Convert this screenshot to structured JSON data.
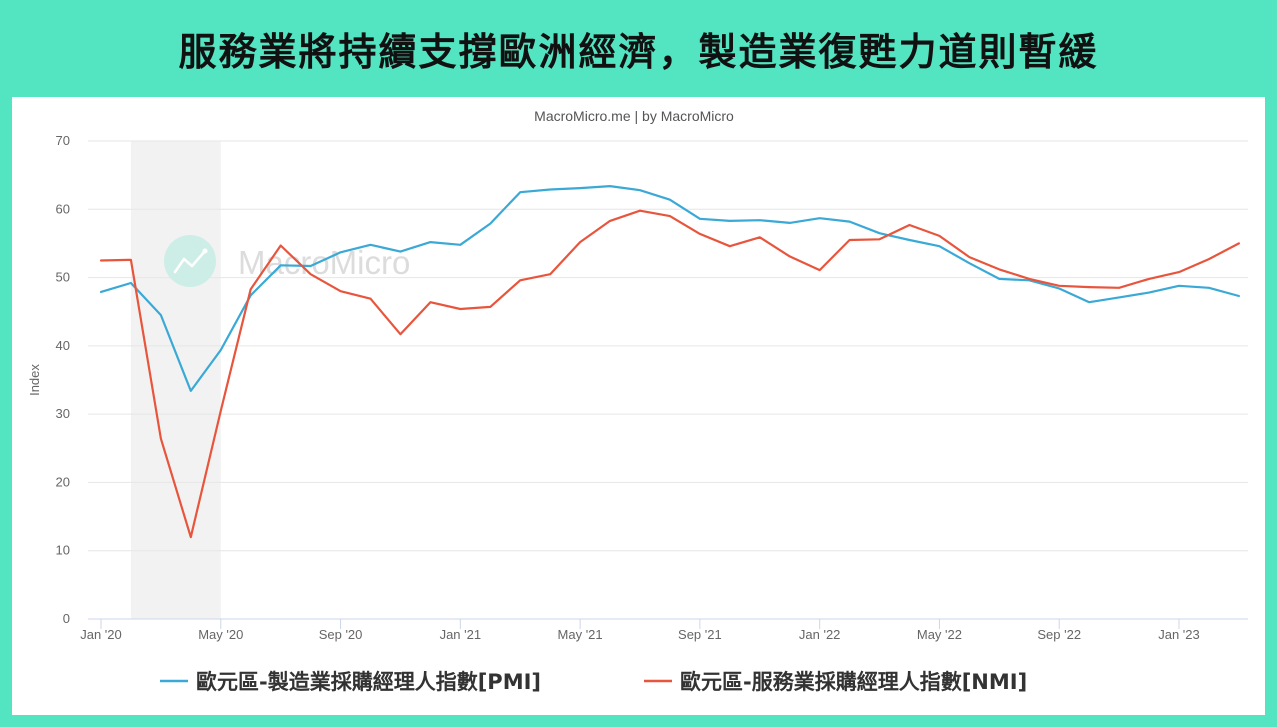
{
  "title": "服務業將持續支撐歐洲經濟，製造業復甦力道則暫緩",
  "colors": {
    "background": "#53e4c2",
    "panel": "#ffffff",
    "shade": "#f2f2f2",
    "grid": "#e6e6e6",
    "axis": "#ccd6eb"
  },
  "chart_data": {
    "type": "line",
    "subtitle": "MacroMicro.me | by MacroMicro",
    "watermark": "MacroMicro",
    "xlabel": "",
    "ylabel": "Index",
    "ylim": [
      0,
      70
    ],
    "y_ticks": [
      0,
      10,
      20,
      30,
      40,
      50,
      60,
      70
    ],
    "x_ticks": [
      {
        "date": "2020-01",
        "label": "Jan '20"
      },
      {
        "date": "2020-05",
        "label": "May '20"
      },
      {
        "date": "2020-09",
        "label": "Sep '20"
      },
      {
        "date": "2021-01",
        "label": "Jan '21"
      },
      {
        "date": "2021-05",
        "label": "May '21"
      },
      {
        "date": "2021-09",
        "label": "Sep '21"
      },
      {
        "date": "2022-01",
        "label": "Jan '22"
      },
      {
        "date": "2022-05",
        "label": "May '22"
      },
      {
        "date": "2022-09",
        "label": "Sep '22"
      },
      {
        "date": "2023-01",
        "label": "Jan '23"
      }
    ],
    "grid": true,
    "legend_position": "bottom",
    "shaded_period": {
      "from": "2020-02",
      "to": "2020-05"
    },
    "x": [
      "2020-01",
      "2020-02",
      "2020-03",
      "2020-04",
      "2020-05",
      "2020-06",
      "2020-07",
      "2020-08",
      "2020-09",
      "2020-10",
      "2020-11",
      "2020-12",
      "2021-01",
      "2021-02",
      "2021-03",
      "2021-04",
      "2021-05",
      "2021-06",
      "2021-07",
      "2021-08",
      "2021-09",
      "2021-10",
      "2021-11",
      "2021-12",
      "2022-01",
      "2022-02",
      "2022-03",
      "2022-04",
      "2022-05",
      "2022-06",
      "2022-07",
      "2022-08",
      "2022-09",
      "2022-10",
      "2022-11",
      "2022-12",
      "2023-01",
      "2023-02",
      "2023-03"
    ],
    "series": [
      {
        "name": "歐元區-製造業採購經理人指數[PMI]",
        "color": "#3aa9d6",
        "values": [
          47.9,
          49.2,
          44.5,
          33.4,
          39.4,
          47.4,
          51.8,
          51.7,
          53.7,
          54.8,
          53.8,
          55.2,
          54.8,
          57.9,
          62.5,
          62.9,
          63.1,
          63.4,
          62.8,
          61.4,
          58.6,
          58.3,
          58.4,
          58.0,
          58.7,
          58.2,
          56.5,
          55.5,
          54.6,
          52.1,
          49.8,
          49.6,
          48.4,
          46.4,
          47.1,
          47.8,
          48.8,
          48.5,
          47.3
        ]
      },
      {
        "name": "歐元區-服務業採購經理人指數[NMI]",
        "color": "#e8553d",
        "values": [
          52.5,
          52.6,
          26.4,
          12.0,
          30.5,
          48.3,
          54.7,
          50.5,
          48.0,
          46.9,
          41.7,
          46.4,
          45.4,
          45.7,
          49.6,
          50.5,
          55.2,
          58.3,
          59.8,
          59.0,
          56.4,
          54.6,
          55.9,
          53.1,
          51.1,
          55.5,
          55.6,
          57.7,
          56.1,
          53.0,
          51.2,
          49.8,
          48.8,
          48.6,
          48.5,
          49.8,
          50.8,
          52.7,
          55.0
        ]
      }
    ]
  }
}
